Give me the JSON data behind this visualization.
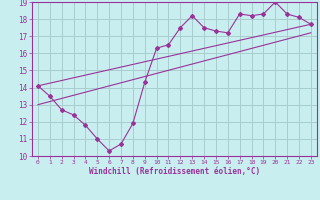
{
  "title": "",
  "xlabel": "Windchill (Refroidissement éolien,°C)",
  "ylabel": "",
  "bg_color": "#c8eef0",
  "line_color": "#993399",
  "grid_color": "#aacccc",
  "xlim": [
    -0.5,
    23.5
  ],
  "ylim": [
    10,
    19
  ],
  "xticks": [
    0,
    1,
    2,
    3,
    4,
    5,
    6,
    7,
    8,
    9,
    10,
    11,
    12,
    13,
    14,
    15,
    16,
    17,
    18,
    19,
    20,
    21,
    22,
    23
  ],
  "yticks": [
    10,
    11,
    12,
    13,
    14,
    15,
    16,
    17,
    18,
    19
  ],
  "series1_x": [
    0,
    1,
    2,
    3,
    4,
    5,
    6,
    7,
    8,
    9,
    10,
    11,
    12,
    13,
    14,
    15,
    16,
    17,
    18,
    19,
    20,
    21,
    22,
    23
  ],
  "series1_y": [
    14.1,
    13.5,
    12.7,
    12.4,
    11.8,
    11.0,
    10.3,
    10.7,
    11.9,
    14.3,
    16.3,
    16.5,
    17.5,
    18.2,
    17.5,
    17.3,
    17.2,
    18.3,
    18.2,
    18.3,
    19.0,
    18.3,
    18.1,
    17.7
  ],
  "series2_x": [
    0,
    23
  ],
  "series2_y": [
    14.1,
    17.7
  ],
  "series3_x": [
    0,
    23
  ],
  "series3_y": [
    13.0,
    17.2
  ]
}
